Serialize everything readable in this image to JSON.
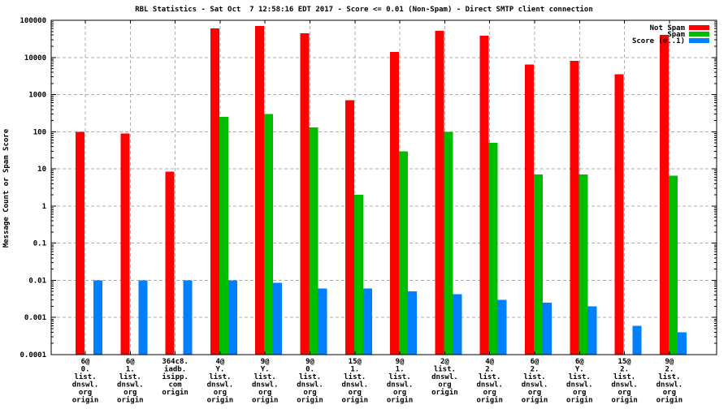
{
  "chart_data": {
    "type": "bar",
    "title": "RBL Statistics - Sat Oct  7 12:58:16 EDT 2017 - Score <= 0.01 (Non-Spam) - Direct SMTP client connection",
    "ylabel": "Message Count or Spam Score",
    "xlabel": "",
    "yscale": "log",
    "ylim": [
      0.0001,
      100000
    ],
    "ytick_labels": [
      "100000",
      "10000",
      "1000",
      "100",
      "10",
      "1",
      "0.1",
      "0.01",
      "0.001",
      "0.0001"
    ],
    "grid": true,
    "legend_position": "top-right",
    "categories": [
      [
        "6@",
        "0.",
        "list.",
        "dnswl.",
        "org",
        "origin"
      ],
      [
        "6@",
        "1.",
        "list.",
        "dnswl.",
        "org",
        "origin"
      ],
      [
        "364c8.",
        "iadb.",
        "isipp.",
        "com",
        "origin"
      ],
      [
        "4@",
        "Y.",
        "list.",
        "dnswl.",
        "org",
        "origin"
      ],
      [
        "9@",
        "Y.",
        "list.",
        "dnswl.",
        "org",
        "origin"
      ],
      [
        "9@",
        "0.",
        "list.",
        "dnswl.",
        "org",
        "origin"
      ],
      [
        "15@",
        "1.",
        "list.",
        "dnswl.",
        "org",
        "origin"
      ],
      [
        "9@",
        "1.",
        "list.",
        "dnswl.",
        "org",
        "origin"
      ],
      [
        "2@",
        "list.",
        "dnswl.",
        "org",
        "origin"
      ],
      [
        "4@",
        "2.",
        "list.",
        "dnswl.",
        "org",
        "origin"
      ],
      [
        "6@",
        "2.",
        "list.",
        "dnswl.",
        "org",
        "origin"
      ],
      [
        "6@",
        "Y.",
        "list.",
        "dnswl.",
        "org",
        "origin"
      ],
      [
        "15@",
        "2.",
        "list.",
        "dnswl.",
        "org",
        "origin"
      ],
      [
        "9@",
        "2.",
        "list.",
        "dnswl.",
        "org",
        "origin"
      ]
    ],
    "series": [
      {
        "name": "Not Spam",
        "color": "#ff0000",
        "values": [
          100,
          90,
          8.5,
          60000,
          70000,
          45000,
          700,
          14000,
          52000,
          38000,
          6500,
          8000,
          3500,
          40000
        ]
      },
      {
        "name": "Spam",
        "color": "#00bd00",
        "values": [
          null,
          null,
          null,
          250,
          300,
          130,
          2,
          30,
          100,
          50,
          7,
          7,
          null,
          6.5
        ]
      },
      {
        "name": "Score (0..1)",
        "color": "#0080ff",
        "values": [
          0.01,
          0.01,
          0.01,
          0.01,
          0.0085,
          0.006,
          0.006,
          0.005,
          0.0042,
          0.003,
          0.0025,
          0.002,
          0.0006,
          0.0004
        ]
      }
    ]
  }
}
